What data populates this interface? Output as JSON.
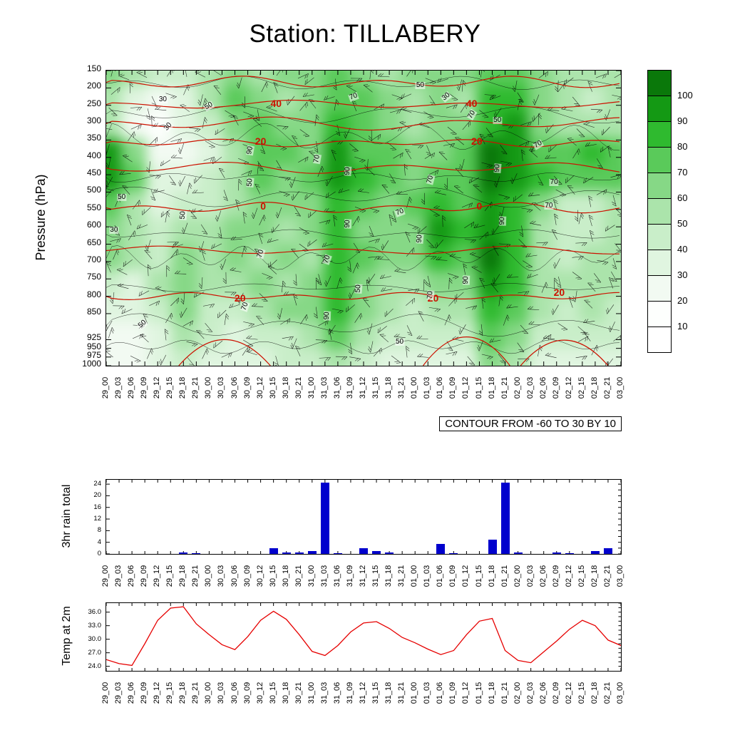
{
  "title": "Station: TILLABERY",
  "times": [
    "29_00",
    "29_03",
    "29_06",
    "29_09",
    "29_12",
    "29_15",
    "29_18",
    "29_21",
    "30_00",
    "30_03",
    "30_06",
    "30_09",
    "30_12",
    "30_15",
    "30_18",
    "30_21",
    "31_00",
    "31_03",
    "31_06",
    "31_09",
    "31_12",
    "31_15",
    "31_18",
    "31_21",
    "01_00",
    "01_03",
    "01_06",
    "01_09",
    "01_12",
    "01_15",
    "01_18",
    "01_21",
    "02_00",
    "02_03",
    "02_06",
    "02_09",
    "02_12",
    "02_15",
    "02_18",
    "02_21",
    "03_00"
  ],
  "chart_data": [
    {
      "type": "heatmap",
      "description": "Time-pressure cross-section: green shading = relative humidity (%), red contours = temperature labelled 40/20/0/20, black contours labelled 30-90, wind barbs overlaid",
      "ylabel": "Pressure (hPa)",
      "y_ticks": [
        150,
        200,
        250,
        300,
        350,
        400,
        450,
        500,
        550,
        600,
        650,
        700,
        750,
        800,
        850,
        925,
        950,
        975,
        1000
      ],
      "contour_note": "CONTOUR FROM -60 TO 30 BY 10",
      "colorbar_labels": [
        100,
        90,
        80,
        70,
        60,
        50,
        40,
        30,
        20,
        10
      ],
      "scale_colors_low_to_high": [
        "#ffffff",
        "#fdfffd",
        "#f2faf2",
        "#e0f5e0",
        "#c9eec9",
        "#abe4ab",
        "#86d886",
        "#5aca5a",
        "#2fba2f",
        "#149914",
        "#0a780a"
      ],
      "red_contour_line_color": "#cc1100",
      "red_line_levels_pct": [
        4,
        11.5,
        18,
        24.5,
        33,
        46.5,
        61,
        76.5
      ],
      "red_bottom_bump_centers_pct": [
        23,
        70,
        89
      ],
      "red_contour_labels": [
        {
          "text": "40",
          "x": 33,
          "y": 11
        },
        {
          "text": "40",
          "x": 71,
          "y": 11
        },
        {
          "text": "20",
          "x": 30,
          "y": 24
        },
        {
          "text": "20",
          "x": 72,
          "y": 24
        },
        {
          "text": "0",
          "x": 30.5,
          "y": 46
        },
        {
          "text": "0",
          "x": 72.5,
          "y": 46
        },
        {
          "text": "20",
          "x": 26,
          "y": 77
        },
        {
          "text": "20",
          "x": 63.5,
          "y": 77
        },
        {
          "text": "20",
          "x": 88,
          "y": 75
        }
      ],
      "black_contour_labels": [
        {
          "text": "30",
          "x": 11,
          "y": 10,
          "rot": 0
        },
        {
          "text": "50",
          "x": 20,
          "y": 12,
          "rot": -30
        },
        {
          "text": "70",
          "x": 48,
          "y": 9,
          "rot": -20
        },
        {
          "text": "50",
          "x": 61,
          "y": 5,
          "rot": 0
        },
        {
          "text": "30",
          "x": 66,
          "y": 9,
          "rot": -40
        },
        {
          "text": "70",
          "x": 71,
          "y": 15,
          "rot": -60
        },
        {
          "text": "50",
          "x": 76,
          "y": 17,
          "rot": 0
        },
        {
          "text": "70",
          "x": 84,
          "y": 25,
          "rot": -30
        },
        {
          "text": "30",
          "x": 12,
          "y": 19,
          "rot": -50
        },
        {
          "text": "90",
          "x": 28,
          "y": 27,
          "rot": -80
        },
        {
          "text": "50",
          "x": 28,
          "y": 38,
          "rot": -85
        },
        {
          "text": "70",
          "x": 41,
          "y": 30,
          "rot": -80
        },
        {
          "text": "90",
          "x": 47,
          "y": 34,
          "rot": -85
        },
        {
          "text": "70",
          "x": 63,
          "y": 37,
          "rot": -75
        },
        {
          "text": "90",
          "x": 76,
          "y": 33,
          "rot": -85
        },
        {
          "text": "70",
          "x": 87,
          "y": 38,
          "rot": 0
        },
        {
          "text": "50",
          "x": 3,
          "y": 43,
          "rot": 0
        },
        {
          "text": "50",
          "x": 15,
          "y": 49,
          "rot": -85
        },
        {
          "text": "90",
          "x": 47,
          "y": 52,
          "rot": -88
        },
        {
          "text": "30",
          "x": 1.5,
          "y": 54,
          "rot": 0
        },
        {
          "text": "70",
          "x": 57,
          "y": 48,
          "rot": -20
        },
        {
          "text": "90",
          "x": 61,
          "y": 57,
          "rot": -85
        },
        {
          "text": "70",
          "x": 30,
          "y": 62,
          "rot": -75
        },
        {
          "text": "70",
          "x": 43,
          "y": 64,
          "rot": -70
        },
        {
          "text": "90",
          "x": 77,
          "y": 51,
          "rot": -88
        },
        {
          "text": "70",
          "x": 86,
          "y": 46,
          "rot": 0
        },
        {
          "text": "50",
          "x": 49,
          "y": 74,
          "rot": -85
        },
        {
          "text": "90",
          "x": 43,
          "y": 83,
          "rot": -88
        },
        {
          "text": "70",
          "x": 27,
          "y": 80,
          "rot": -70
        },
        {
          "text": "50",
          "x": 7,
          "y": 86,
          "rot": -40
        },
        {
          "text": "70",
          "x": 63,
          "y": 76,
          "rot": -85
        },
        {
          "text": "90",
          "x": 70,
          "y": 71,
          "rot": -88
        },
        {
          "text": "50",
          "x": 57,
          "y": 92,
          "rot": 0
        }
      ],
      "humidity_grid_pct": [
        [
          62,
          55,
          48,
          42,
          52,
          60,
          55,
          60,
          66,
          72,
          62,
          56,
          60,
          66,
          62,
          72,
          76,
          62,
          55,
          50,
          56
        ],
        [
          50,
          30,
          24,
          36,
          55,
          70,
          62,
          55,
          60,
          76,
          70,
          60,
          56,
          62,
          56,
          82,
          86,
          62,
          50,
          46,
          52
        ],
        [
          56,
          24,
          14,
          30,
          46,
          60,
          72,
          66,
          60,
          82,
          72,
          66,
          56,
          60,
          62,
          86,
          90,
          66,
          56,
          50,
          56
        ],
        [
          95,
          60,
          20,
          26,
          36,
          55,
          76,
          70,
          66,
          95,
          76,
          70,
          60,
          66,
          70,
          100,
          95,
          70,
          76,
          80,
          70
        ],
        [
          95,
          70,
          30,
          30,
          40,
          50,
          70,
          66,
          70,
          95,
          80,
          70,
          66,
          70,
          76,
          100,
          90,
          86,
          70,
          76,
          70
        ],
        [
          70,
          55,
          34,
          40,
          46,
          55,
          66,
          60,
          66,
          86,
          70,
          66,
          70,
          80,
          70,
          90,
          86,
          60,
          48,
          44,
          55
        ],
        [
          66,
          55,
          46,
          55,
          50,
          60,
          60,
          56,
          60,
          80,
          66,
          60,
          66,
          92,
          86,
          90,
          80,
          50,
          40,
          42,
          50
        ],
        [
          60,
          50,
          46,
          60,
          55,
          60,
          56,
          60,
          56,
          86,
          70,
          60,
          60,
          80,
          70,
          100,
          86,
          55,
          46,
          50,
          55
        ],
        [
          40,
          36,
          50,
          66,
          50,
          55,
          60,
          55,
          60,
          86,
          66,
          55,
          50,
          66,
          60,
          92,
          80,
          55,
          50,
          55,
          50
        ],
        [
          30,
          30,
          46,
          60,
          46,
          40,
          50,
          60,
          66,
          80,
          60,
          50,
          46,
          55,
          50,
          86,
          76,
          50,
          46,
          50,
          46
        ],
        [
          24,
          26,
          36,
          50,
          40,
          36,
          40,
          46,
          55,
          70,
          50,
          46,
          40,
          46,
          40,
          76,
          66,
          46,
          40,
          46,
          40
        ],
        [
          20,
          20,
          30,
          40,
          34,
          30,
          36,
          40,
          46,
          56,
          40,
          36,
          30,
          36,
          34,
          60,
          50,
          36,
          30,
          36,
          30
        ]
      ]
    },
    {
      "type": "bar",
      "ylabel": "3hr rain total",
      "y_ticks": [
        0,
        4,
        8,
        12,
        16,
        20,
        24
      ],
      "ymax": 25.5,
      "bar_color": "#0000cd",
      "values": [
        0,
        0,
        0,
        0,
        0,
        0,
        0.5,
        0.2,
        0,
        0,
        0,
        0,
        0,
        2,
        0.5,
        0.5,
        1,
        24.5,
        0.3,
        0,
        2,
        1,
        0.5,
        0,
        0,
        0,
        3.5,
        0.3,
        0,
        0,
        5,
        24.5,
        0.5,
        0,
        0,
        0.5,
        0.2,
        0,
        1,
        2,
        0
      ]
    },
    {
      "type": "line",
      "ylabel": "Temp at 2m",
      "y_ticks": [
        "24.0",
        "27.0",
        "30.0",
        "33.0",
        "36.0"
      ],
      "ymin": 23,
      "ymax": 38,
      "line_color": "#e60000",
      "values": [
        25.5,
        24.6,
        24.2,
        29.0,
        34.2,
        36.9,
        37.2,
        33.4,
        31.0,
        28.8,
        27.7,
        30.6,
        34.2,
        36.2,
        34.4,
        31.0,
        27.3,
        26.4,
        28.6,
        31.6,
        33.6,
        33.9,
        32.4,
        30.4,
        29.2,
        27.8,
        26.6,
        27.5,
        31.0,
        34.0,
        34.6,
        27.5,
        25.3,
        24.8,
        27.2,
        29.6,
        32.2,
        34.2,
        33.0,
        29.8,
        28.6
      ]
    }
  ]
}
